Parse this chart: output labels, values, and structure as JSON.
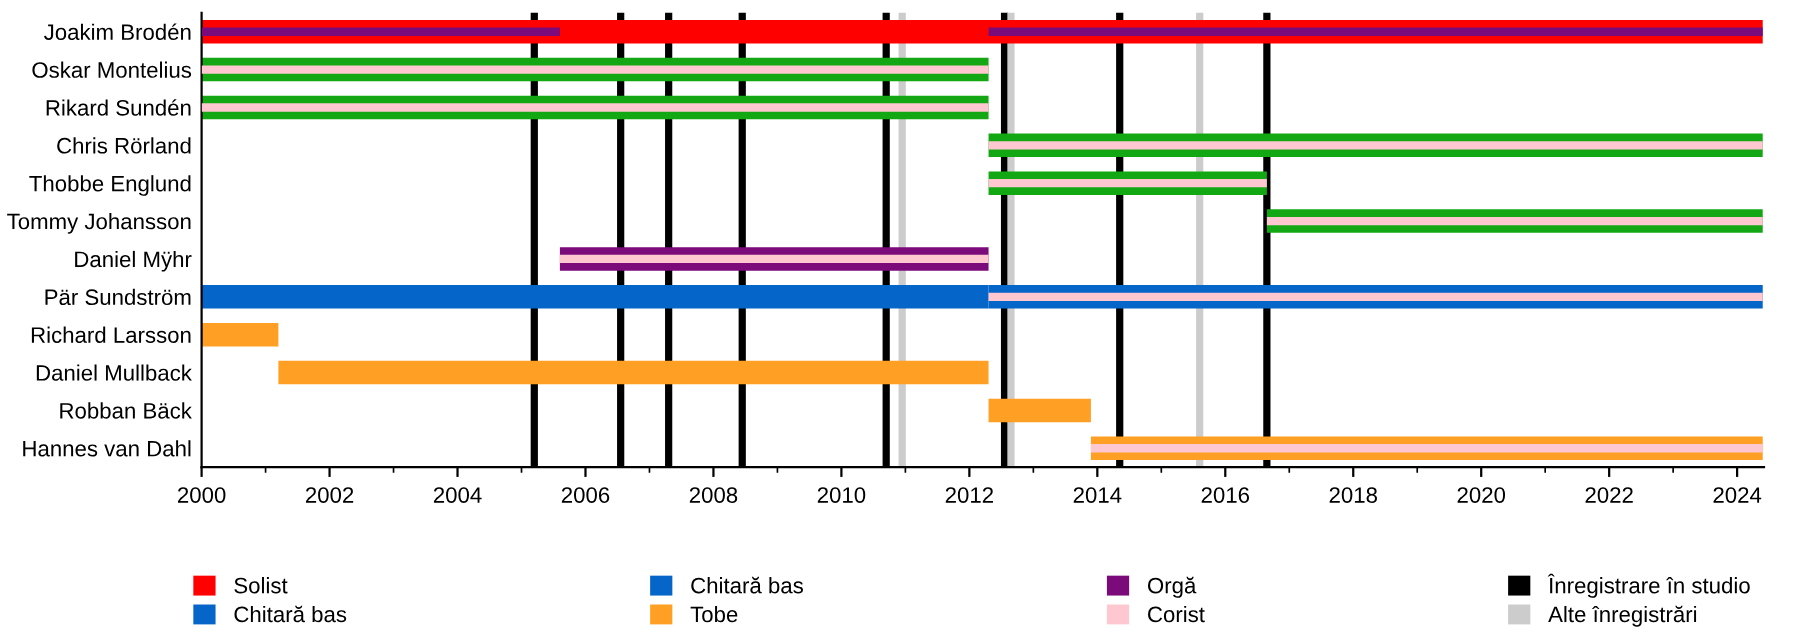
{
  "chart_data": {
    "type": "bar",
    "orientation": "horizontal",
    "categories": [
      "Joakim Brodén",
      "Oskar Montelius",
      "Rikard Sundén",
      "Chris Rörland",
      "Thobbe Englund",
      "Tommy Johansson",
      "Daniel Mÿhr",
      "Pär Sundström",
      "Richard Larsson",
      "Daniel Mullback",
      "Robban Bäck",
      "Hannes van Dahl"
    ],
    "series": [
      {
        "name": "Solist",
        "color": "#ff0000",
        "values": [
          24.4,
          null,
          null,
          null,
          null,
          null,
          null,
          null,
          null,
          null,
          null,
          null
        ],
        "base": [
          2000,
          null,
          null,
          null,
          null,
          null,
          null,
          null,
          null,
          null,
          null,
          null
        ]
      },
      {
        "name": "Chitară bas",
        "color": "#0565c8",
        "values": [
          null,
          null,
          null,
          null,
          null,
          null,
          null,
          12.3,
          null,
          null,
          null,
          null
        ],
        "base": [
          null,
          null,
          null,
          null,
          null,
          null,
          null,
          2000,
          null,
          null,
          null,
          null
        ]
      },
      {
        "name": "Chitară bas",
        "color": "#0565c8",
        "values": [
          null,
          null,
          null,
          null,
          null,
          null,
          null,
          12.1,
          null,
          null,
          null,
          null
        ],
        "base": [
          null,
          null,
          null,
          null,
          null,
          null,
          null,
          2012.3,
          null,
          null,
          null,
          null
        ]
      },
      {
        "name": "Tobe",
        "color": "#ffa024",
        "values": [
          null,
          null,
          null,
          null,
          null,
          null,
          null,
          null,
          1.2,
          11.1,
          1.6,
          10.5
        ],
        "base": [
          null,
          null,
          null,
          null,
          null,
          null,
          null,
          null,
          2000,
          2001.2,
          2012.3,
          2013.9
        ]
      },
      {
        "color": "#13a813",
        "values": [
          null,
          12.3,
          12.3,
          12.1,
          4.35,
          7.75,
          null,
          null,
          null,
          null,
          null,
          null
        ],
        "base": [
          null,
          2000,
          2000,
          2012.3,
          2012.3,
          2016.65,
          null,
          null,
          null,
          null,
          null,
          null
        ]
      },
      {
        "name": "Orgă",
        "color": "#7b0a7b",
        "values": [
          5.6,
          null,
          null,
          null,
          null,
          null,
          6.7,
          null,
          null,
          null,
          null,
          null
        ],
        "base": [
          2000,
          null,
          null,
          null,
          null,
          null,
          2005.6,
          null,
          null,
          null,
          null,
          null
        ]
      },
      {
        "color": "#7b0a7b",
        "values": [
          12.1,
          null,
          null,
          null,
          null,
          null,
          null,
          null,
          null,
          null,
          null,
          null
        ],
        "base": [
          2012.3,
          null,
          null,
          null,
          null,
          null,
          null,
          null,
          null,
          null,
          null,
          null
        ]
      },
      {
        "name": "Corist",
        "color": "#ffc8d0",
        "values": [
          null,
          12.3,
          12.3,
          12.1,
          4.35,
          7.75,
          6.7,
          12.1,
          null,
          null,
          null,
          10.5
        ],
        "base": [
          null,
          2000,
          2000,
          2012.3,
          2012.3,
          2016.65,
          2005.6,
          2012.3,
          null,
          null,
          null,
          2013.9
        ]
      }
    ],
    "ref_lines": [
      {
        "axis": "x",
        "value": 2005.2,
        "color": "#000000",
        "label": "Înregistrare în studio"
      },
      {
        "axis": "x",
        "value": 2006.55,
        "color": "#000000"
      },
      {
        "axis": "x",
        "value": 2007.3,
        "color": "#000000"
      },
      {
        "axis": "x",
        "value": 2008.45,
        "color": "#000000"
      },
      {
        "axis": "x",
        "value": 2010.7,
        "color": "#000000"
      },
      {
        "axis": "x",
        "value": 2012.55,
        "color": "#000000"
      },
      {
        "axis": "x",
        "value": 2014.35,
        "color": "#000000"
      },
      {
        "axis": "x",
        "value": 2016.65,
        "color": "#000000"
      },
      {
        "axis": "x",
        "value": 2010.95,
        "color": "#cccccc",
        "label": "Alte înregistrări"
      },
      {
        "axis": "x",
        "value": 2012.65,
        "color": "#cccccc"
      },
      {
        "axis": "x",
        "value": 2015.6,
        "color": "#cccccc"
      }
    ],
    "xlim": [
      2000,
      2024.42
    ],
    "xticks": [
      2000,
      2002,
      2004,
      2006,
      2008,
      2010,
      2012,
      2014,
      2016,
      2018,
      2020,
      2022,
      2024
    ],
    "grid": false,
    "legend": "bottom"
  }
}
